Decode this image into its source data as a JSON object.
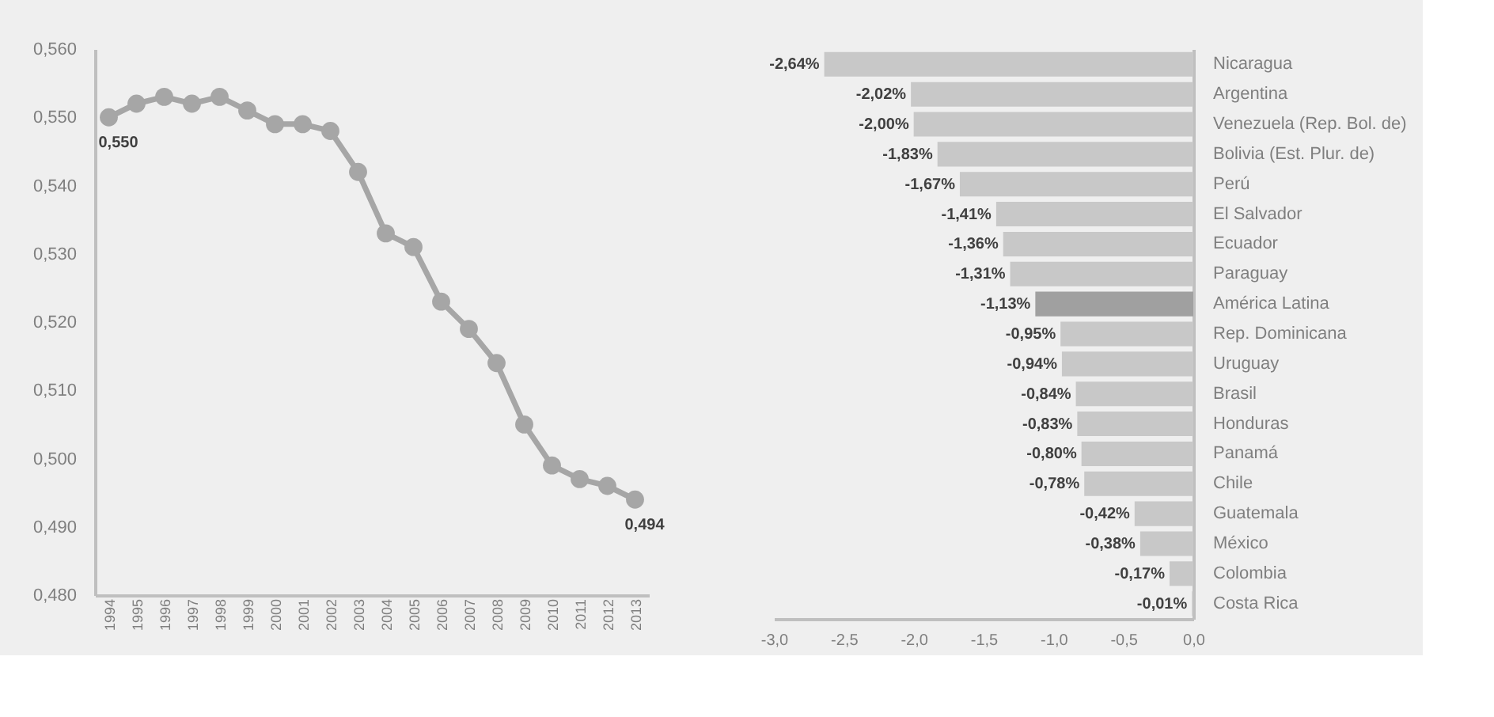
{
  "chart_data": [
    {
      "type": "line",
      "categories": [
        "1994",
        "1995",
        "1996",
        "1997",
        "1998",
        "1999",
        "2000",
        "2001",
        "2002",
        "2003",
        "2004",
        "2005",
        "2006",
        "2007",
        "2008",
        "2009",
        "2010",
        "2011",
        "2012",
        "2013"
      ],
      "series": [
        {
          "color": "#a6a6a6",
          "values": [
            0.55,
            0.552,
            0.553,
            0.552,
            0.553,
            0.551,
            0.549,
            0.549,
            0.548,
            0.542,
            0.533,
            0.531,
            0.523,
            0.519,
            0.514,
            0.505,
            0.499,
            0.497,
            0.496,
            0.494
          ],
          "value_labels": [
            "0,550",
            null,
            null,
            null,
            null,
            null,
            null,
            null,
            null,
            null,
            null,
            null,
            null,
            null,
            null,
            null,
            null,
            null,
            null,
            "0,494"
          ]
        }
      ],
      "ylim": [
        0.48,
        0.56
      ],
      "yticks": [
        {
          "value": 0.48,
          "label": "0,480"
        },
        {
          "value": 0.49,
          "label": "0,490"
        },
        {
          "value": 0.5,
          "label": "0,500"
        },
        {
          "value": 0.51,
          "label": "0,510"
        },
        {
          "value": 0.52,
          "label": "0,520"
        },
        {
          "value": 0.53,
          "label": "0,530"
        },
        {
          "value": 0.54,
          "label": "0,540"
        },
        {
          "value": 0.55,
          "label": "0,550"
        },
        {
          "value": 0.56,
          "label": "0,560"
        }
      ],
      "marker": "circle",
      "line_style": "solid",
      "grid": false
    },
    {
      "type": "bar",
      "orientation": "horizontal",
      "categories": [
        "Nicaragua",
        "Argentina",
        "Venezuela (Rep. Bol. de)",
        "Bolivia (Est. Plur. de)",
        "Perú",
        "El Salvador",
        "Ecuador",
        "Paraguay",
        "América Latina",
        "Rep. Dominicana",
        "Uruguay",
        "Brasil",
        "Honduras",
        "Panamá",
        "Chile",
        "Guatemala",
        "México",
        "Colombia",
        "Costa Rica"
      ],
      "values": [
        -2.64,
        -2.02,
        -2.0,
        -1.83,
        -1.67,
        -1.41,
        -1.36,
        -1.31,
        -1.13,
        -0.95,
        -0.94,
        -0.84,
        -0.83,
        -0.8,
        -0.78,
        -0.42,
        -0.38,
        -0.17,
        -0.01
      ],
      "value_labels": [
        "-2,64%",
        "-2,02%",
        "-2,00%",
        "-1,83%",
        "-1,67%",
        "-1,41%",
        "-1,36%",
        "-1,31%",
        "-1,13%",
        "-0,95%",
        "-0,94%",
        "-0,84%",
        "-0,83%",
        "-0,80%",
        "-0,78%",
        "-0,42%",
        "-0,38%",
        "-0,17%",
        "-0,01%"
      ],
      "colors": [
        "#c8c8c8",
        "#c8c8c8",
        "#c8c8c8",
        "#c8c8c8",
        "#c8c8c8",
        "#c8c8c8",
        "#c8c8c8",
        "#c8c8c8",
        "#a0a0a0",
        "#c8c8c8",
        "#c8c8c8",
        "#c8c8c8",
        "#c8c8c8",
        "#c8c8c8",
        "#c8c8c8",
        "#c8c8c8",
        "#c8c8c8",
        "#c8c8c8",
        "#c8c8c8"
      ],
      "xlim": [
        -3.0,
        0.0
      ],
      "xticks": [
        {
          "value": -3.0,
          "label": "-3,0"
        },
        {
          "value": -2.5,
          "label": "-2,5"
        },
        {
          "value": -2.0,
          "label": "-2,0"
        },
        {
          "value": -1.5,
          "label": "-1,5"
        },
        {
          "value": -1.0,
          "label": "-1,0"
        },
        {
          "value": -0.5,
          "label": "-0,5"
        },
        {
          "value": 0.0,
          "label": "0,0"
        }
      ],
      "grid": false
    }
  ]
}
